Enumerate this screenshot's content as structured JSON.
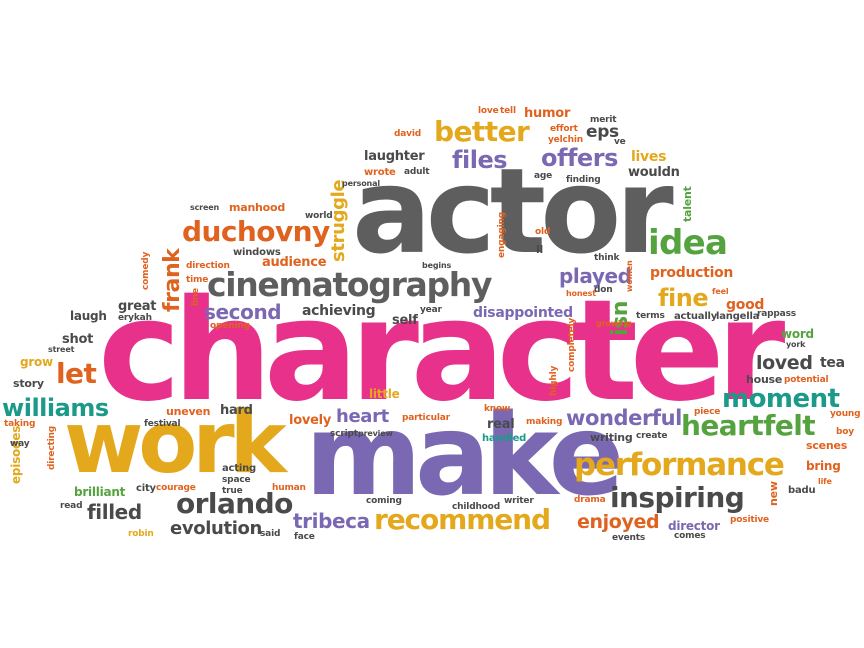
{
  "colors": {
    "pink": "#e8318b",
    "gray": "#5e5e5e",
    "gold": "#e3a81c",
    "purple": "#7b68b3",
    "orange": "#e0621f",
    "green": "#55a33f",
    "teal": "#1b9a8a",
    "dark": "#4a4a4a"
  },
  "words": [
    {
      "text": "character",
      "color": "pink"
    },
    {
      "text": "actor",
      "color": "gray"
    },
    {
      "text": "make",
      "color": "purple"
    },
    {
      "text": "work",
      "color": "gold"
    },
    {
      "text": "cinematography",
      "color": "gray"
    },
    {
      "text": "performance",
      "color": "gold"
    },
    {
      "text": "heartfelt",
      "color": "green"
    },
    {
      "text": "moment",
      "color": "teal"
    },
    {
      "text": "inspiring",
      "color": "dark"
    },
    {
      "text": "recommend",
      "color": "gold"
    },
    {
      "text": "orlando",
      "color": "dark"
    },
    {
      "text": "better",
      "color": "gold"
    },
    {
      "text": "files",
      "color": "purple"
    },
    {
      "text": "offers",
      "color": "purple"
    },
    {
      "text": "idea",
      "color": "green"
    },
    {
      "text": "duchovny",
      "color": "orange"
    },
    {
      "text": "let",
      "color": "orange"
    },
    {
      "text": "williams",
      "color": "teal"
    },
    {
      "text": "wonderful",
      "color": "purple"
    },
    {
      "text": "fine",
      "color": "gold"
    },
    {
      "text": "enjoyed",
      "color": "orange"
    },
    {
      "text": "tribeca",
      "color": "purple"
    },
    {
      "text": "evolution",
      "color": "dark"
    },
    {
      "text": "filled",
      "color": "dark"
    },
    {
      "text": "played",
      "color": "purple"
    },
    {
      "text": "second",
      "color": "purple"
    },
    {
      "text": "heart",
      "color": "purple"
    },
    {
      "text": "loved",
      "color": "dark"
    },
    {
      "text": "isn",
      "color": "green"
    },
    {
      "text": "production",
      "color": "orange"
    },
    {
      "text": "frank",
      "color": "orange"
    },
    {
      "text": "struggle",
      "color": "gold"
    },
    {
      "text": "audience",
      "color": "orange"
    },
    {
      "text": "achieving",
      "color": "dark"
    },
    {
      "text": "disappointed",
      "color": "purple"
    },
    {
      "text": "laughter",
      "color": "dark"
    },
    {
      "text": "humor",
      "color": "orange"
    },
    {
      "text": "eps",
      "color": "dark"
    },
    {
      "text": "lives",
      "color": "gold"
    },
    {
      "text": "wouldn",
      "color": "dark"
    },
    {
      "text": "manhood",
      "color": "orange"
    },
    {
      "text": "windows",
      "color": "dark"
    },
    {
      "text": "great",
      "color": "dark"
    },
    {
      "text": "laugh",
      "color": "dark"
    },
    {
      "text": "shot",
      "color": "dark"
    },
    {
      "text": "grow",
      "color": "gold"
    },
    {
      "text": "story",
      "color": "dark"
    },
    {
      "text": "street",
      "color": "dark"
    },
    {
      "text": "good",
      "color": "orange"
    },
    {
      "text": "tea",
      "color": "dark"
    },
    {
      "text": "word",
      "color": "green"
    },
    {
      "text": "bring",
      "color": "orange"
    },
    {
      "text": "scenes",
      "color": "orange"
    },
    {
      "text": "new",
      "color": "orange"
    },
    {
      "text": "badu",
      "color": "dark"
    },
    {
      "text": "director",
      "color": "purple"
    },
    {
      "text": "positive",
      "color": "orange"
    },
    {
      "text": "events",
      "color": "dark"
    },
    {
      "text": "comes",
      "color": "dark"
    },
    {
      "text": "lovely",
      "color": "orange"
    },
    {
      "text": "little",
      "color": "gold"
    },
    {
      "text": "hard",
      "color": "dark"
    },
    {
      "text": "uneven",
      "color": "orange"
    },
    {
      "text": "real",
      "color": "dark"
    },
    {
      "text": "handled",
      "color": "teal"
    },
    {
      "text": "writing",
      "color": "dark"
    },
    {
      "text": "create",
      "color": "dark"
    },
    {
      "text": "piece",
      "color": "orange"
    },
    {
      "text": "brilliant",
      "color": "green"
    },
    {
      "text": "episodes",
      "color": "gold"
    },
    {
      "text": "directing",
      "color": "orange"
    },
    {
      "text": "taking",
      "color": "orange"
    },
    {
      "text": "way",
      "color": "dark"
    },
    {
      "text": "read",
      "color": "dark"
    },
    {
      "text": "robin",
      "color": "gold"
    },
    {
      "text": "city",
      "color": "dark"
    },
    {
      "text": "courage",
      "color": "orange"
    },
    {
      "text": "acting",
      "color": "dark"
    },
    {
      "text": "space",
      "color": "dark"
    },
    {
      "text": "true",
      "color": "dark"
    },
    {
      "text": "said",
      "color": "dark"
    },
    {
      "text": "human",
      "color": "orange"
    },
    {
      "text": "face",
      "color": "dark"
    },
    {
      "text": "coming",
      "color": "dark"
    },
    {
      "text": "childhood",
      "color": "dark"
    },
    {
      "text": "writer",
      "color": "dark"
    },
    {
      "text": "drama",
      "color": "orange"
    },
    {
      "text": "festival",
      "color": "dark"
    },
    {
      "text": "script",
      "color": "dark"
    },
    {
      "text": "preview",
      "color": "dark"
    },
    {
      "text": "particular",
      "color": "orange"
    },
    {
      "text": "know",
      "color": "orange"
    },
    {
      "text": "making",
      "color": "orange"
    },
    {
      "text": "highly",
      "color": "orange"
    },
    {
      "text": "completely",
      "color": "orange"
    },
    {
      "text": "house",
      "color": "dark"
    },
    {
      "text": "potential",
      "color": "orange"
    },
    {
      "text": "young",
      "color": "orange"
    },
    {
      "text": "boy",
      "color": "orange"
    },
    {
      "text": "life",
      "color": "orange"
    },
    {
      "text": "self",
      "color": "dark"
    },
    {
      "text": "year",
      "color": "dark"
    },
    {
      "text": "opening",
      "color": "orange"
    },
    {
      "text": "line",
      "color": "orange"
    },
    {
      "text": "erykah",
      "color": "dark"
    },
    {
      "text": "comedy",
      "color": "orange"
    },
    {
      "text": "direction",
      "color": "orange"
    },
    {
      "text": "time",
      "color": "orange"
    },
    {
      "text": "screen",
      "color": "dark"
    },
    {
      "text": "world",
      "color": "dark"
    },
    {
      "text": "begins",
      "color": "dark"
    },
    {
      "text": "engaging",
      "color": "orange"
    },
    {
      "text": "ll",
      "color": "dark"
    },
    {
      "text": "old",
      "color": "orange"
    },
    {
      "text": "think",
      "color": "dark"
    },
    {
      "text": "women",
      "color": "orange"
    },
    {
      "text": "honest",
      "color": "orange"
    },
    {
      "text": "don",
      "color": "dark"
    },
    {
      "text": "growing",
      "color": "orange"
    },
    {
      "text": "terms",
      "color": "dark"
    },
    {
      "text": "actually",
      "color": "dark"
    },
    {
      "text": "langella",
      "color": "dark"
    },
    {
      "text": "rappass",
      "color": "dark"
    },
    {
      "text": "feel",
      "color": "orange"
    },
    {
      "text": "merit",
      "color": "dark"
    },
    {
      "text": "talent",
      "color": "green"
    },
    {
      "text": "york",
      "color": "dark"
    },
    {
      "text": "finding",
      "color": "dark"
    },
    {
      "text": "age",
      "color": "dark"
    },
    {
      "text": "wrote",
      "color": "orange"
    },
    {
      "text": "adult",
      "color": "dark"
    },
    {
      "text": "personal",
      "color": "dark"
    },
    {
      "text": "david",
      "color": "orange"
    },
    {
      "text": "love",
      "color": "orange"
    },
    {
      "text": "tell",
      "color": "orange"
    },
    {
      "text": "effort",
      "color": "orange"
    },
    {
      "text": "yelchin",
      "color": "orange"
    },
    {
      "text": "ve",
      "color": "dark"
    }
  ]
}
